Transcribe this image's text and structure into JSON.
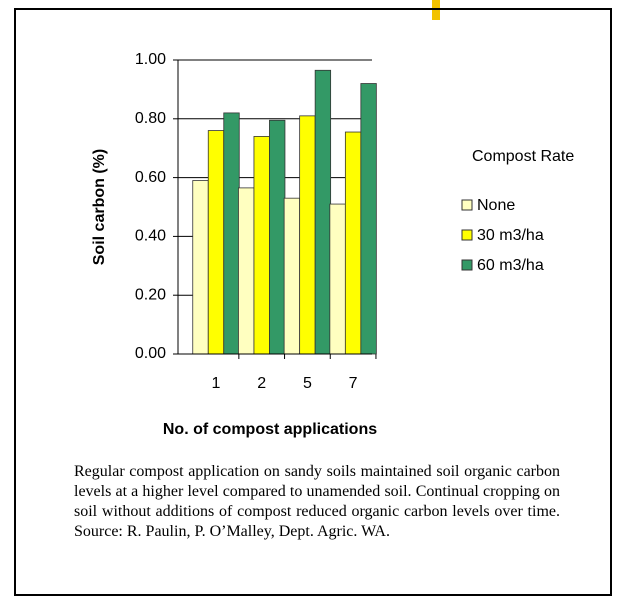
{
  "chart_data": {
    "type": "bar",
    "ylabel": "Soil carbon (%)",
    "xlabel": "No. of compost applications",
    "legend_title": "Compost Rate",
    "categories": [
      "1",
      "2",
      "5",
      "7"
    ],
    "series": [
      {
        "name": "None",
        "color": "#ffffc0",
        "values": [
          0.59,
          0.565,
          0.53,
          0.51
        ]
      },
      {
        "name": "30 m3/ha",
        "color": "#ffff00",
        "values": [
          0.76,
          0.74,
          0.81,
          0.755
        ]
      },
      {
        "name": "60 m3/ha",
        "color": "#339966",
        "values": [
          0.82,
          0.795,
          0.965,
          0.92
        ]
      }
    ],
    "ylim": [
      0,
      1
    ],
    "yticks": [
      {
        "value": 0,
        "label": "0.00"
      },
      {
        "value": 0.2,
        "label": "0.20"
      },
      {
        "value": 0.4,
        "label": "0.40"
      },
      {
        "value": 0.6,
        "label": "0.60"
      },
      {
        "value": 0.8,
        "label": "0.80"
      },
      {
        "value": 1,
        "label": "1.00"
      }
    ],
    "grid": true,
    "legend": "right",
    "caption": "Regular compost application on sandy soils maintained soil organic carbon levels at a higher level compared to unamended soil. Continual cropping on soil without additions of compost reduced organic carbon levels over time. Source: R. Paulin, P. O’Malley, Dept. Agric. WA."
  }
}
